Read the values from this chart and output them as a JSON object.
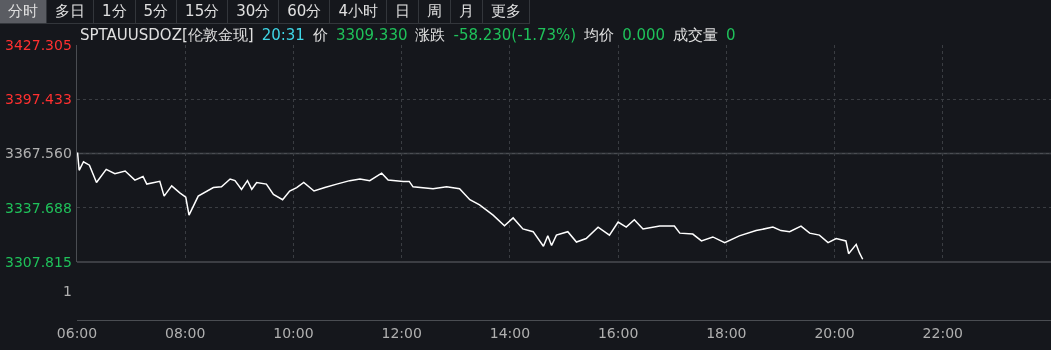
{
  "chart_data": {
    "type": "line",
    "title": "SPTAUUSDOZ[伦敦金现]",
    "annotations": [
      "分时",
      "多日",
      "1分",
      "5分",
      "15分",
      "30分",
      "60分",
      "4小时",
      "日",
      "周",
      "月",
      "更多",
      "20:31",
      "价",
      "3309.330",
      "涨跌",
      "-58.230(-1.73%)",
      "均价",
      "0.000",
      "成交量",
      "0",
      "1"
    ],
    "x": [
      6.01,
      6.04,
      6.12,
      6.23,
      6.36,
      6.54,
      6.7,
      6.89,
      7.07,
      7.22,
      7.29,
      7.53,
      7.61,
      7.75,
      7.9,
      8.01,
      8.07,
      8.24,
      8.52,
      8.67,
      8.83,
      8.92,
      9.04,
      9.15,
      9.23,
      9.32,
      9.5,
      9.63,
      9.8,
      9.93,
      10.06,
      10.19,
      10.38,
      10.58,
      10.8,
      11.04,
      11.23,
      11.41,
      11.63,
      11.75,
      12.03,
      12.14,
      12.21,
      12.58,
      12.83,
      13.07,
      13.26,
      13.44,
      13.69,
      13.9,
      14.06,
      14.24,
      14.43,
      14.62,
      14.7,
      14.77,
      14.86,
      15.07,
      15.23,
      15.41,
      15.63,
      15.84,
      16.0,
      16.15,
      16.3,
      16.46,
      16.77,
      17.04,
      17.14,
      17.38,
      17.54,
      17.75,
      17.97,
      18.24,
      18.55,
      18.86,
      19.01,
      19.17,
      19.38,
      19.54,
      19.72,
      19.88,
      20.03,
      20.21,
      20.26,
      20.4,
      20.46,
      20.52
    ],
    "series": [
      {
        "color": "#ffffff",
        "values": [
          3368.1,
          3358.3,
          3363.0,
          3361.1,
          3351.6,
          3358.8,
          3356.4,
          3357.9,
          3352.9,
          3354.9,
          3350.7,
          3352.2,
          3344.1,
          3349.7,
          3345.9,
          3343.5,
          3333.6,
          3344.1,
          3348.8,
          3349.2,
          3353.5,
          3352.6,
          3347.8,
          3352.6,
          3347.8,
          3351.6,
          3350.7,
          3345.0,
          3342.1,
          3346.9,
          3348.8,
          3351.6,
          3346.9,
          3348.8,
          3350.7,
          3352.6,
          3353.5,
          3352.6,
          3356.7,
          3352.9,
          3352.2,
          3352.2,
          3349.2,
          3348.2,
          3349.2,
          3348.2,
          3342.1,
          3339.3,
          3333.6,
          3327.8,
          3332.1,
          3326.0,
          3324.5,
          3316.5,
          3322.2,
          3316.9,
          3322.6,
          3324.5,
          3318.8,
          3320.7,
          3327.0,
          3322.6,
          3329.8,
          3327.0,
          3331.1,
          3326.0,
          3327.6,
          3327.6,
          3323.7,
          3323.2,
          3319.4,
          3321.6,
          3318.5,
          3322.2,
          3325.1,
          3327.0,
          3325.1,
          3324.5,
          3327.6,
          3323.7,
          3322.6,
          3318.5,
          3320.7,
          3319.4,
          3312.4,
          3317.5,
          3312.8,
          3309.3
        ]
      }
    ],
    "xlim": [
      6,
      24
    ],
    "xticks": [
      {
        "value": 6,
        "label": "06:00"
      },
      {
        "value": 8,
        "label": "08:00"
      },
      {
        "value": 10,
        "label": "10:00"
      },
      {
        "value": 12,
        "label": "12:00"
      },
      {
        "value": 14,
        "label": "14:00"
      },
      {
        "value": 16,
        "label": "16:00"
      },
      {
        "value": 18,
        "label": "18:00"
      },
      {
        "value": 20,
        "label": "20:00"
      },
      {
        "value": 22,
        "label": "22:00"
      }
    ],
    "ylim": [
      3307.815,
      3427.305
    ],
    "yticks": [
      {
        "value": 3307.815,
        "label": "3307.815"
      },
      {
        "value": 3337.688,
        "label": "3337.688"
      },
      {
        "value": 3367.56,
        "label": "3367.560"
      },
      {
        "value": 3397.433,
        "label": "3397.433"
      },
      {
        "value": 3427.305,
        "label": "3427.305"
      }
    ],
    "ref_lines": [
      {
        "axis": "y",
        "value": 3367.56,
        "color": "#4a4d52"
      }
    ],
    "grid": true
  }
}
